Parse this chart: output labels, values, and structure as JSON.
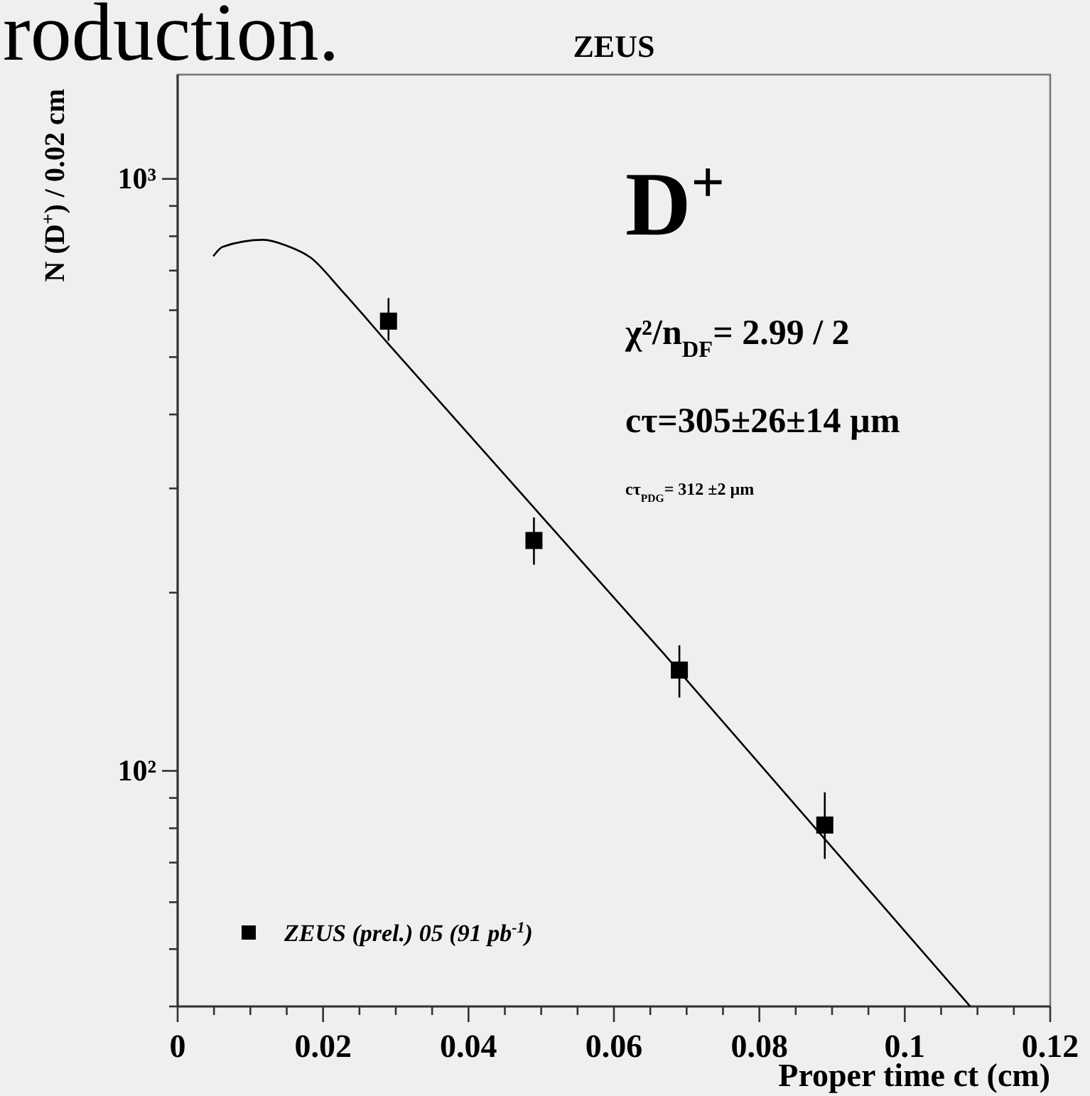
{
  "chart_data": {
    "type": "scatter",
    "title": "ZEUS",
    "xlabel": "Proper time ct (cm)",
    "ylabel": "N (D$^{+}$) / 0.02 cm",
    "annotations": [
      "roduction.",
      "D$^{+}$",
      "χ²/n$_{DF}$= 2.99 / 2",
      "cτ=305±26±14 µm",
      "cτ$_{PDG}$= 312 ±2 µm"
    ],
    "xlim": [
      0,
      0.12
    ],
    "xticks": [
      0,
      {
        "value": 0.005,
        "label": null
      },
      {
        "value": 0.01,
        "label": null
      },
      {
        "value": 0.015,
        "label": null
      },
      0.02,
      {
        "value": 0.025,
        "label": null
      },
      {
        "value": 0.03,
        "label": null
      },
      {
        "value": 0.035,
        "label": null
      },
      0.04,
      {
        "value": 0.045,
        "label": null
      },
      {
        "value": 0.05,
        "label": null
      },
      {
        "value": 0.055,
        "label": null
      },
      0.06,
      {
        "value": 0.065,
        "label": null
      },
      {
        "value": 0.07,
        "label": null
      },
      {
        "value": 0.075,
        "label": null
      },
      0.08,
      {
        "value": 0.085,
        "label": null
      },
      {
        "value": 0.09,
        "label": null
      },
      {
        "value": 0.095,
        "label": null
      },
      0.1,
      {
        "value": 0.105,
        "label": null
      },
      {
        "value": 0.11,
        "label": null
      },
      {
        "value": 0.115,
        "label": null
      },
      0.12
    ],
    "log": "y",
    "ylim": [
      40,
      1500
    ],
    "yticks": [
      {
        "value": 40,
        "label": null
      },
      {
        "value": 50,
        "label": null
      },
      {
        "value": 60,
        "label": null
      },
      {
        "value": 70,
        "label": null
      },
      {
        "value": 80,
        "label": null
      },
      {
        "value": 90,
        "label": null
      },
      {
        "value": 100,
        "label": "10²"
      },
      {
        "value": 200,
        "label": null
      },
      {
        "value": 300,
        "label": null
      },
      {
        "value": 400,
        "label": null
      },
      {
        "value": 500,
        "label": null
      },
      {
        "value": 600,
        "label": null
      },
      {
        "value": 700,
        "label": null
      },
      {
        "value": 800,
        "label": null
      },
      {
        "value": 900,
        "label": null
      },
      {
        "value": 1000,
        "label": "10³"
      }
    ],
    "grid": false,
    "legend": "bottom left",
    "marker": "square",
    "series": [
      {
        "name": "ZEUS (prel.) 05 (91 pb$^{-1}$)",
        "type": "scatter",
        "color": "#000000",
        "x": [
          0.029,
          0.049,
          0.069,
          0.089
        ],
        "values": [
          575,
          245,
          148,
          81
        ],
        "errors": [
          [
            533,
            629
          ],
          [
            223,
            268
          ],
          [
            133,
            163
          ],
          [
            71,
            92
          ]
        ]
      },
      {
        "type": "line",
        "color": "#000000",
        "marker": "none",
        "line_style": "solid",
        "x": [
          0.0049,
          0.0062,
          0.0118,
          0.015,
          0.0183,
          0.0225,
          0.029,
          0.067,
          0.109
        ],
        "values": [
          740,
          768,
          789,
          771,
          736,
          649,
          526,
          157,
          40
        ]
      }
    ]
  }
}
